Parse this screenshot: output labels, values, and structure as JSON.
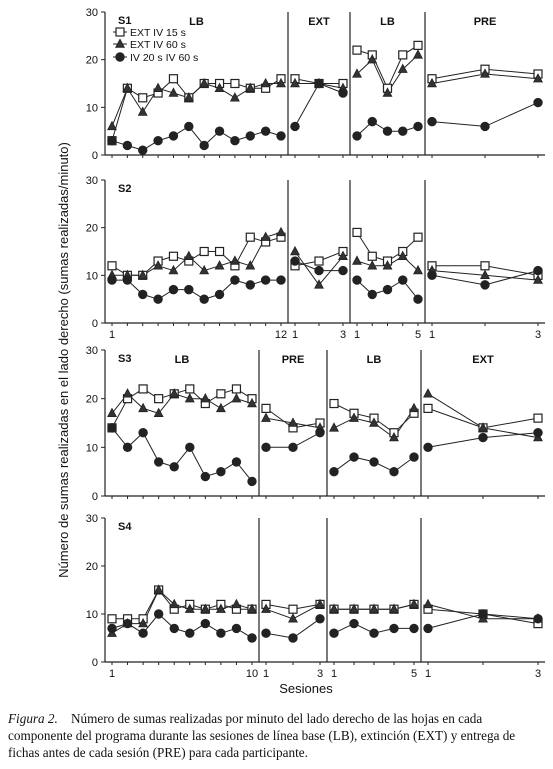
{
  "figure": {
    "ylabel": "Número de sumas realizadas en el lado derecho (sumas realizadas/minuto)",
    "xlabel": "Sesiones",
    "legend": [
      "EXT IV 15 s",
      "EXT IV 60 s",
      "IV 20 s IV 60 s"
    ],
    "legend_placement": "top-left of S1 panel",
    "caption_label": "Figura 2.",
    "caption_text": "Número de sumas realizadas por minuto del lado derecho de las hojas en cada componente del programa durante  las sesiones de línea base (LB), extinción (EXT) y entrega de fichas antes de cada sesión (PRE) para cada participante."
  },
  "chart_data": [
    {
      "type": "line",
      "participant": "S1",
      "ylim": [
        0,
        30
      ],
      "yticks": [
        0,
        10,
        20,
        30
      ],
      "grid": false,
      "phases": [
        {
          "label": "LB",
          "x": [
            1,
            2,
            3,
            4,
            5,
            6,
            7,
            8,
            9,
            10,
            11,
            12
          ],
          "series": [
            {
              "name": "EXT IV 15 s",
              "values": [
                3,
                14,
                12,
                13,
                16,
                12,
                15,
                15,
                15,
                14,
                14,
                16
              ]
            },
            {
              "name": "EXT IV 60 s",
              "values": [
                6,
                14,
                9,
                14,
                13,
                12,
                15,
                14,
                12,
                14,
                15,
                15
              ]
            },
            {
              "name": "IV 20 s IV 60 s",
              "values": [
                3,
                2,
                1,
                3,
                4,
                6,
                2,
                5,
                3,
                4,
                5,
                4
              ]
            }
          ]
        },
        {
          "label": "EXT",
          "x": [
            1,
            2,
            3
          ],
          "series": [
            {
              "name": "EXT IV 15 s",
              "values": [
                16,
                15,
                15
              ]
            },
            {
              "name": "EXT IV 60 s",
              "values": [
                15,
                15,
                14
              ]
            },
            {
              "name": "IV 20 s IV 60 s",
              "values": [
                6,
                15,
                13
              ]
            }
          ]
        },
        {
          "label": "LB",
          "x": [
            1,
            2,
            3,
            4,
            5
          ],
          "series": [
            {
              "name": "EXT IV 15 s",
              "values": [
                22,
                21,
                14,
                21,
                23
              ]
            },
            {
              "name": "EXT IV 60 s",
              "values": [
                17,
                20,
                13,
                18,
                21
              ]
            },
            {
              "name": "IV 20 s IV 60 s",
              "values": [
                4,
                7,
                5,
                5,
                6
              ]
            }
          ]
        },
        {
          "label": "PRE",
          "x": [
            1,
            2,
            3
          ],
          "series": [
            {
              "name": "EXT IV 15 s",
              "values": [
                16,
                18,
                17
              ]
            },
            {
              "name": "EXT IV 60 s",
              "values": [
                15,
                17,
                16
              ]
            },
            {
              "name": "IV 20 s IV 60 s",
              "values": [
                7,
                6,
                11
              ]
            }
          ]
        }
      ]
    },
    {
      "type": "line",
      "participant": "S2",
      "ylim": [
        0,
        30
      ],
      "yticks": [
        0,
        10,
        20,
        30
      ],
      "grid": false,
      "xtick_labels": [
        "1",
        "12",
        "1",
        "3",
        "1",
        "5",
        "1",
        "3"
      ],
      "phases": [
        {
          "label": "",
          "x": [
            1,
            2,
            3,
            4,
            5,
            6,
            7,
            8,
            9,
            10,
            11,
            12
          ],
          "series": [
            {
              "name": "EXT IV 15 s",
              "values": [
                12,
                10,
                10,
                13,
                14,
                13,
                15,
                15,
                12,
                18,
                17,
                18
              ]
            },
            {
              "name": "EXT IV 60 s",
              "values": [
                10,
                10,
                10,
                12,
                11,
                14,
                11,
                12,
                13,
                12,
                18,
                19
              ]
            },
            {
              "name": "IV 20 s IV 60 s",
              "values": [
                9,
                9,
                6,
                5,
                7,
                7,
                5,
                6,
                9,
                8,
                9,
                9
              ]
            }
          ]
        },
        {
          "label": "",
          "x": [
            1,
            2,
            3
          ],
          "series": [
            {
              "name": "EXT IV 15 s",
              "values": [
                12,
                13,
                15
              ]
            },
            {
              "name": "EXT IV 60 s",
              "values": [
                15,
                8,
                14
              ]
            },
            {
              "name": "IV 20 s IV 60 s",
              "values": [
                13,
                11,
                11
              ]
            }
          ]
        },
        {
          "label": "",
          "x": [
            1,
            2,
            3,
            4,
            5
          ],
          "series": [
            {
              "name": "EXT IV 15 s",
              "values": [
                19,
                14,
                13,
                15,
                18
              ]
            },
            {
              "name": "EXT IV 60 s",
              "values": [
                13,
                12,
                12,
                14,
                11
              ]
            },
            {
              "name": "IV 20 s IV 60 s",
              "values": [
                9,
                6,
                7,
                9,
                5
              ]
            }
          ]
        },
        {
          "label": "",
          "x": [
            1,
            2,
            3
          ],
          "series": [
            {
              "name": "EXT IV 15 s",
              "values": [
                12,
                12,
                10
              ]
            },
            {
              "name": "EXT IV 60 s",
              "values": [
                11,
                10,
                9
              ]
            },
            {
              "name": "IV 20 s IV 60 s",
              "values": [
                10,
                8,
                11
              ]
            }
          ]
        }
      ]
    },
    {
      "type": "line",
      "participant": "S3",
      "ylim": [
        0,
        30
      ],
      "yticks": [
        0,
        10,
        20,
        30
      ],
      "grid": false,
      "phases": [
        {
          "label": "LB",
          "x": [
            1,
            2,
            3,
            4,
            5,
            6,
            7,
            8,
            9,
            10
          ],
          "series": [
            {
              "name": "EXT IV 15 s",
              "values": [
                14,
                20,
                22,
                20,
                21,
                22,
                19,
                21,
                22,
                20
              ]
            },
            {
              "name": "EXT IV 60 s",
              "values": [
                17,
                21,
                18,
                17,
                21,
                20,
                20,
                18,
                20,
                19
              ]
            },
            {
              "name": "IV 20 s IV 60 s",
              "values": [
                14,
                10,
                13,
                7,
                6,
                10,
                4,
                5,
                7,
                3
              ]
            }
          ]
        },
        {
          "label": "PRE",
          "x": [
            1,
            2,
            3
          ],
          "series": [
            {
              "name": "EXT IV 15 s",
              "values": [
                18,
                14,
                15
              ]
            },
            {
              "name": "EXT IV 60 s",
              "values": [
                16,
                15,
                14
              ]
            },
            {
              "name": "IV 20 s IV 60 s",
              "values": [
                10,
                10,
                13
              ]
            }
          ]
        },
        {
          "label": "LB",
          "x": [
            1,
            2,
            3,
            4,
            5
          ],
          "series": [
            {
              "name": "EXT IV 15 s",
              "values": [
                19,
                17,
                16,
                13,
                17
              ]
            },
            {
              "name": "EXT IV 60 s",
              "values": [
                14,
                16,
                15,
                12,
                18
              ]
            },
            {
              "name": "IV 20 s IV 60 s",
              "values": [
                5,
                8,
                7,
                5,
                8
              ]
            }
          ]
        },
        {
          "label": "EXT",
          "x": [
            1,
            2,
            3
          ],
          "series": [
            {
              "name": "EXT IV 15 s",
              "values": [
                18,
                14,
                16
              ]
            },
            {
              "name": "EXT IV 60 s",
              "values": [
                21,
                14,
                12
              ]
            },
            {
              "name": "IV 20 s IV 60 s",
              "values": [
                10,
                12,
                13
              ]
            }
          ]
        }
      ]
    },
    {
      "type": "line",
      "participant": "S4",
      "ylim": [
        0,
        30
      ],
      "yticks": [
        0,
        10,
        20,
        30
      ],
      "grid": false,
      "xtick_labels": [
        "1",
        "10",
        "1",
        "3",
        "1",
        "5",
        "1",
        "3"
      ],
      "phases": [
        {
          "label": "",
          "x": [
            1,
            2,
            3,
            4,
            5,
            6,
            7,
            8,
            9,
            10
          ],
          "series": [
            {
              "name": "EXT IV 15 s",
              "values": [
                9,
                9,
                9,
                15,
                11,
                12,
                11,
                12,
                11,
                11
              ]
            },
            {
              "name": "EXT IV 60 s",
              "values": [
                6,
                8,
                8,
                15,
                12,
                11,
                11,
                11,
                12,
                11
              ]
            },
            {
              "name": "IV 20 s IV 60 s",
              "values": [
                7,
                8,
                6,
                10,
                7,
                6,
                8,
                6,
                7,
                5
              ]
            }
          ]
        },
        {
          "label": "",
          "x": [
            1,
            2,
            3
          ],
          "series": [
            {
              "name": "EXT IV 15 s",
              "values": [
                12,
                11,
                12
              ]
            },
            {
              "name": "EXT IV 60 s",
              "values": [
                11,
                9,
                12
              ]
            },
            {
              "name": "IV 20 s IV 60 s",
              "values": [
                6,
                5,
                9
              ]
            }
          ]
        },
        {
          "label": "",
          "x": [
            1,
            2,
            3,
            4,
            5
          ],
          "series": [
            {
              "name": "EXT IV 15 s",
              "values": [
                11,
                11,
                11,
                11,
                12
              ]
            },
            {
              "name": "EXT IV 60 s",
              "values": [
                11,
                11,
                11,
                11,
                12
              ]
            },
            {
              "name": "IV 20 s IV 60 s",
              "values": [
                6,
                8,
                6,
                7,
                7
              ]
            }
          ]
        },
        {
          "label": "",
          "x": [
            1,
            2,
            3
          ],
          "series": [
            {
              "name": "EXT IV 15 s",
              "values": [
                11,
                10,
                8
              ]
            },
            {
              "name": "EXT IV 60 s",
              "values": [
                12,
                9,
                9
              ]
            },
            {
              "name": "IV 20 s IV 60 s",
              "values": [
                7,
                10,
                9
              ]
            }
          ]
        }
      ]
    }
  ]
}
